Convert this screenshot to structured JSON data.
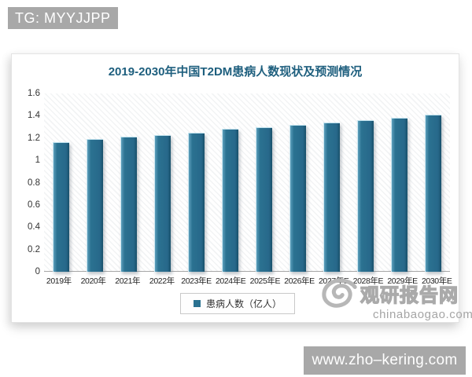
{
  "header": {
    "tg_label": "TG: MYYJJPP"
  },
  "chart_data": {
    "type": "bar",
    "title": "2019-2030年中国T2DM患病人数现状及预测情况",
    "categories": [
      "2019年",
      "2020年",
      "2021年",
      "2022年",
      "2023年E",
      "2024年E",
      "2025年E",
      "2026年E",
      "2027年E",
      "2028年E",
      "2029年E",
      "2030年E"
    ],
    "values": [
      1.16,
      1.19,
      1.21,
      1.23,
      1.25,
      1.28,
      1.3,
      1.32,
      1.34,
      1.36,
      1.38,
      1.41
    ],
    "series_name": "患病人数（亿人）",
    "xlabel": "",
    "ylabel": "",
    "ylim": [
      0,
      1.6
    ],
    "yticks": [
      0,
      0.2,
      0.4,
      0.6,
      0.8,
      1,
      1.2,
      1.4,
      1.6
    ],
    "grid": false,
    "legend_position": "bottom",
    "bar_color": "#2b7291",
    "plot_background": "diagonal-hatch"
  },
  "legend": {
    "label": "患病人数（亿人）",
    "marker_color": "#2b7291"
  },
  "watermark": {
    "logo": "swirl-logo",
    "site_name": "观研报告网",
    "site_url": "chinabaogao.com"
  },
  "footer": {
    "url_badge": "www.zho–kering.com"
  },
  "colors": {
    "title": "#1e5f7e",
    "bar": "#2b7291",
    "badge_bg": "#a8a8a8",
    "watermark_gray": "#b5b5b5"
  }
}
